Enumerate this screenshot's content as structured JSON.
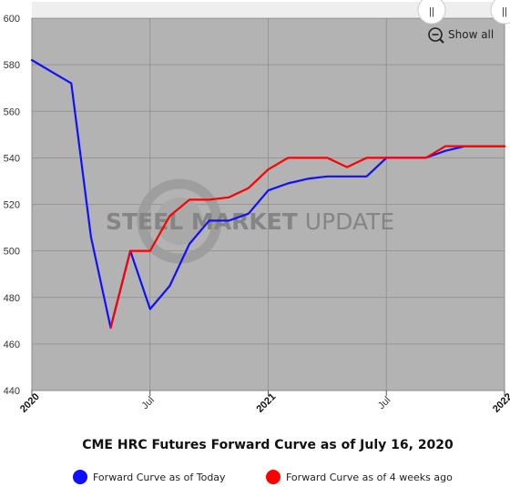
{
  "chart_data": {
    "type": "line",
    "title": "CME HRC Futures Forward Curve as of July 16, 2020",
    "xlabel": "",
    "ylabel": "",
    "ylim": [
      440,
      600
    ],
    "yticks": [
      440,
      460,
      480,
      500,
      520,
      540,
      560,
      580,
      600
    ],
    "x_range": [
      "2020-01",
      "2022-01"
    ],
    "x_ticks": [
      {
        "label": "2020",
        "x": "2020-01",
        "bold": true
      },
      {
        "label": "Jul",
        "x": "2020-07",
        "bold": false
      },
      {
        "label": "2021",
        "x": "2021-01",
        "bold": true
      },
      {
        "label": "Jul",
        "x": "2021-07",
        "bold": false
      },
      {
        "label": "2022",
        "x": "2022-01",
        "bold": true
      }
    ],
    "grid": true,
    "legend_position": "bottom",
    "background": "#b3b3b3",
    "series": [
      {
        "name": "Forward Curve as of Today",
        "color": "#1010ff",
        "points": [
          [
            "2020-01-01",
            582
          ],
          [
            "2020-02-01",
            577
          ],
          [
            "2020-03-01",
            572
          ],
          [
            "2020-04-01",
            506
          ],
          [
            "2020-05-01",
            467
          ],
          [
            "2020-06-01",
            500
          ],
          [
            "2020-07-01",
            475
          ],
          [
            "2020-08-01",
            485
          ],
          [
            "2020-09-01",
            503
          ],
          [
            "2020-10-01",
            513
          ],
          [
            "2020-11-01",
            513
          ],
          [
            "2020-12-01",
            516
          ],
          [
            "2021-01-01",
            526
          ],
          [
            "2021-02-01",
            529
          ],
          [
            "2021-03-01",
            531
          ],
          [
            "2021-04-01",
            532
          ],
          [
            "2021-05-01",
            532
          ],
          [
            "2021-06-01",
            532
          ],
          [
            "2021-07-01",
            540
          ],
          [
            "2021-08-01",
            540
          ],
          [
            "2021-09-01",
            540
          ],
          [
            "2021-10-01",
            543
          ],
          [
            "2021-11-01",
            545
          ],
          [
            "2021-12-01",
            545
          ],
          [
            "2022-01-01",
            545
          ]
        ]
      },
      {
        "name": "Forward Curve as of 4 weeks ago",
        "color": "#ff0000",
        "points": [
          [
            "2020-05-01",
            467
          ],
          [
            "2020-06-01",
            500
          ],
          [
            "2020-07-01",
            500
          ],
          [
            "2020-08-01",
            515
          ],
          [
            "2020-09-01",
            522
          ],
          [
            "2020-10-01",
            522
          ],
          [
            "2020-11-01",
            523
          ],
          [
            "2020-12-01",
            527
          ],
          [
            "2021-01-01",
            535
          ],
          [
            "2021-02-01",
            540
          ],
          [
            "2021-03-01",
            540
          ],
          [
            "2021-04-01",
            540
          ],
          [
            "2021-05-01",
            536
          ],
          [
            "2021-06-01",
            540
          ],
          [
            "2021-07-01",
            540
          ],
          [
            "2021-08-01",
            540
          ],
          [
            "2021-09-01",
            540
          ],
          [
            "2021-10-01",
            545
          ],
          [
            "2021-11-01",
            545
          ],
          [
            "2021-12-01",
            545
          ],
          [
            "2022-01-01",
            545
          ]
        ]
      }
    ]
  },
  "watermark": {
    "bold": "STEEL MARKET",
    "light": " UPDATE"
  },
  "controls": {
    "show_all": "Show all",
    "scroll_grip": "||",
    "zoom_icon": "zoom-out-icon"
  }
}
